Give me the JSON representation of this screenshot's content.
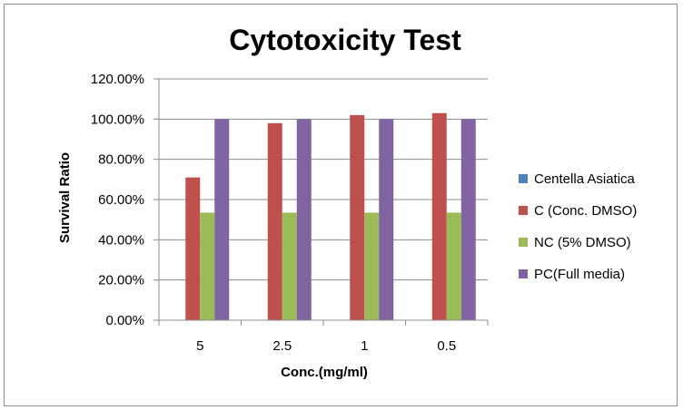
{
  "chart_data": {
    "type": "bar",
    "title": "Cytotoxicity Test",
    "xlabel": "Conc.(mg/ml)",
    "ylabel": "Survival Ratio",
    "categories": [
      "5",
      "2.5",
      "1",
      "0.5"
    ],
    "ylim": [
      0,
      1.2
    ],
    "yticks": [
      "0.00%",
      "20.00%",
      "40.00%",
      "60.00%",
      "80.00%",
      "100.00%",
      "120.00%"
    ],
    "grid": true,
    "legend_position": "right",
    "series": [
      {
        "name": "Centella Asiatica",
        "color": "#4f81bd",
        "values": [
          0,
          0,
          0,
          0
        ]
      },
      {
        "name": "C (Conc. DMSO)",
        "color": "#c0504d",
        "values": [
          0.71,
          0.98,
          1.02,
          1.03
        ]
      },
      {
        "name": "NC (5% DMSO)",
        "color": "#9bbb59",
        "values": [
          0.535,
          0.535,
          0.535,
          0.535
        ]
      },
      {
        "name": "PC(Full media)",
        "color": "#8064a2",
        "values": [
          1.0,
          1.0,
          1.0,
          1.0
        ]
      }
    ]
  }
}
